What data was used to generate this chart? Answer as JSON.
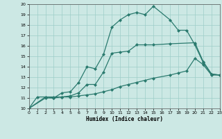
{
  "xlabel": "Humidex (Indice chaleur)",
  "xlim": [
    0,
    23
  ],
  "ylim": [
    10,
    20
  ],
  "xticks": [
    0,
    1,
    2,
    3,
    4,
    5,
    6,
    7,
    8,
    9,
    10,
    11,
    12,
    13,
    14,
    15,
    16,
    17,
    18,
    19,
    20,
    21,
    22,
    23
  ],
  "yticks": [
    10,
    11,
    12,
    13,
    14,
    15,
    16,
    17,
    18,
    19,
    20
  ],
  "line_color": "#2a7a6e",
  "bg_color": "#cce8e4",
  "line1_x": [
    0,
    1,
    2,
    3,
    4,
    5,
    6,
    7,
    8,
    9,
    10,
    11,
    12,
    13,
    14,
    15,
    17,
    20,
    21,
    22,
    23
  ],
  "line1_y": [
    10,
    11.1,
    11.1,
    11.1,
    11.1,
    11.2,
    11.5,
    12.3,
    12.3,
    13.5,
    15.3,
    15.4,
    15.5,
    16.1,
    16.1,
    16.1,
    16.2,
    16.3,
    14.5,
    13.3,
    13.2
  ],
  "line2_x": [
    0,
    2,
    3,
    4,
    5,
    6,
    7,
    8,
    9,
    10,
    11,
    12,
    13,
    14,
    15,
    17,
    18,
    19,
    20,
    21,
    22,
    23
  ],
  "line2_y": [
    10,
    11.1,
    11.0,
    11.5,
    11.6,
    12.5,
    14.0,
    13.8,
    15.2,
    17.8,
    18.5,
    19.0,
    19.2,
    19.0,
    19.8,
    18.5,
    17.5,
    17.5,
    16.1,
    14.4,
    13.3,
    13.2
  ],
  "line3_x": [
    0,
    2,
    3,
    4,
    5,
    6,
    7,
    8,
    9,
    10,
    11,
    12,
    13,
    14,
    15,
    17,
    18,
    19,
    20,
    21,
    22,
    23
  ],
  "line3_y": [
    10,
    11.0,
    11.0,
    11.1,
    11.1,
    11.2,
    11.3,
    11.4,
    11.6,
    11.8,
    12.1,
    12.3,
    12.5,
    12.7,
    12.9,
    13.2,
    13.4,
    13.6,
    14.8,
    14.2,
    13.2,
    13.2
  ]
}
